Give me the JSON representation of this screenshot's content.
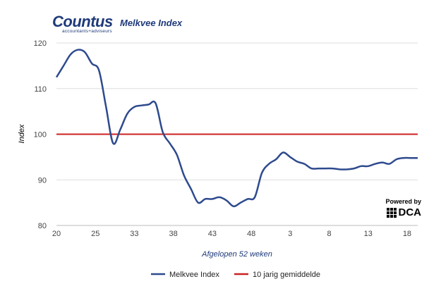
{
  "brand": {
    "name": "Countus",
    "tagline": "accountants+adviseurs"
  },
  "powered_by": {
    "label": "Powered by",
    "logo_text": "DCA"
  },
  "chart_data": {
    "type": "line",
    "title": "Melkvee Index",
    "xlabel": "Afgelopen 52 weken",
    "ylabel": "Index",
    "ylim": [
      80,
      120
    ],
    "yticks": [
      80,
      90,
      100,
      110,
      120
    ],
    "x_tick_labels": [
      "20",
      "25",
      "33",
      "38",
      "43",
      "48",
      "3",
      "8",
      "13",
      "18"
    ],
    "grid": true,
    "legend_position": "bottom",
    "colors": {
      "index": "#2e4a8e",
      "average": "#cc2222"
    },
    "series": [
      {
        "name": "Melkvee Index",
        "x": [
          0,
          1,
          2,
          3,
          4,
          5,
          6,
          7,
          8,
          9,
          10,
          11,
          12,
          13,
          14,
          15,
          16,
          17,
          18,
          19,
          20,
          21,
          22,
          23,
          24,
          25,
          26,
          27,
          28,
          29,
          30,
          31,
          32,
          33,
          34,
          35,
          36,
          37,
          38,
          39,
          40,
          41,
          42,
          43,
          44,
          45,
          46,
          47,
          48,
          49,
          50,
          51
        ],
        "values": [
          112.5,
          115,
          117.5,
          118.5,
          118,
          115.5,
          114,
          106,
          98,
          101,
          104.5,
          106,
          106.3,
          106.5,
          106.8,
          100.5,
          98,
          95.5,
          91,
          88,
          85,
          85.8,
          85.8,
          86.2,
          85.5,
          84.2,
          85,
          85.8,
          86.2,
          91.5,
          93.5,
          94.5,
          96,
          95,
          94,
          93.5,
          92.5,
          92.5,
          92.5,
          92.5,
          92.3,
          92.3,
          92.5,
          93,
          93,
          93.5,
          93.8,
          93.5,
          94.5,
          94.8,
          94.8,
          94.8
        ]
      },
      {
        "name": "10 jarig gemiddelde",
        "x": [
          0,
          51
        ],
        "values": [
          100,
          100
        ]
      }
    ]
  }
}
